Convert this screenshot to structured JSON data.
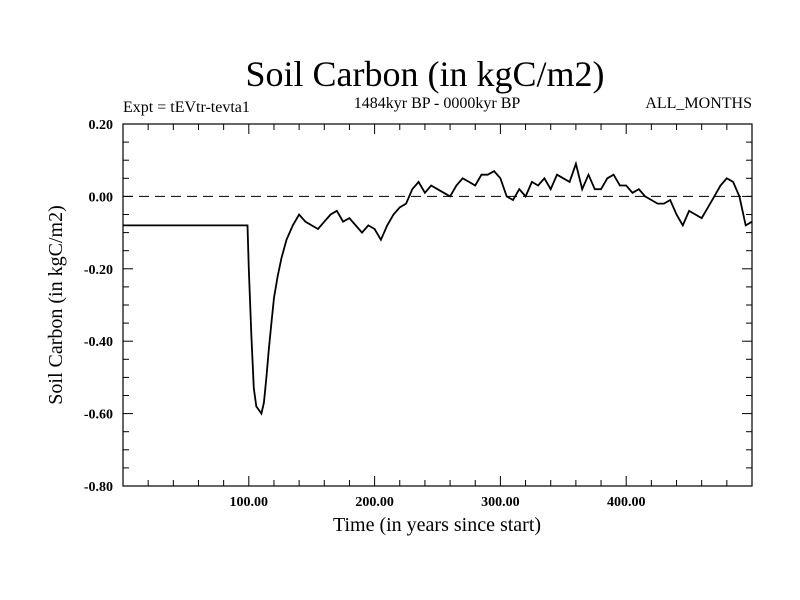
{
  "chart_data": {
    "type": "line",
    "title": "Soil Carbon (in kgC/m2)",
    "subtitle": "1484kyr BP - 0000kyr BP",
    "expt_label": "Expt = tEVtr-tevta1",
    "months_label": "ALL_MONTHS",
    "xlabel": "Time (in years since start)",
    "ylabel": "Soil Carbon (in kgC/m2)",
    "xlim": [
      0,
      500
    ],
    "ylim": [
      -0.8,
      0.2
    ],
    "x_ticks": [
      100,
      200,
      300,
      400
    ],
    "x_tick_labels": [
      "100.00",
      "200.00",
      "300.00",
      "400.00"
    ],
    "y_ticks": [
      0.2,
      0.0,
      -0.2,
      -0.4,
      -0.6,
      -0.8
    ],
    "y_tick_labels": [
      "0.20",
      "0.00",
      "-0.20",
      "-0.40",
      "-0.60",
      "-0.80"
    ],
    "reference_line": 0.0,
    "series": [
      {
        "name": "Soil Carbon",
        "color": "#000000",
        "x": [
          0,
          99,
          100,
          102,
          104,
          106,
          108,
          110,
          112,
          114,
          116,
          118,
          120,
          123,
          126,
          130,
          135,
          140,
          145,
          150,
          155,
          160,
          165,
          170,
          175,
          180,
          185,
          190,
          195,
          200,
          205,
          210,
          215,
          220,
          225,
          230,
          235,
          240,
          245,
          250,
          255,
          260,
          265,
          270,
          275,
          280,
          285,
          290,
          295,
          300,
          305,
          310,
          315,
          320,
          325,
          330,
          335,
          340,
          345,
          350,
          355,
          360,
          365,
          370,
          375,
          380,
          385,
          390,
          395,
          400,
          405,
          410,
          415,
          420,
          425,
          430,
          435,
          440,
          445,
          450,
          455,
          460,
          465,
          470,
          475,
          480,
          485,
          490,
          495,
          500
        ],
        "y": [
          -0.08,
          -0.08,
          -0.2,
          -0.38,
          -0.53,
          -0.58,
          -0.59,
          -0.6,
          -0.57,
          -0.5,
          -0.42,
          -0.35,
          -0.28,
          -0.22,
          -0.17,
          -0.12,
          -0.08,
          -0.05,
          -0.07,
          -0.08,
          -0.09,
          -0.07,
          -0.05,
          -0.04,
          -0.07,
          -0.06,
          -0.08,
          -0.1,
          -0.08,
          -0.09,
          -0.12,
          -0.08,
          -0.05,
          -0.03,
          -0.02,
          0.02,
          0.04,
          0.01,
          0.03,
          0.02,
          0.01,
          0.0,
          0.03,
          0.05,
          0.04,
          0.03,
          0.06,
          0.06,
          0.07,
          0.05,
          0.0,
          -0.01,
          0.02,
          0.0,
          0.04,
          0.03,
          0.05,
          0.02,
          0.06,
          0.05,
          0.04,
          0.09,
          0.02,
          0.06,
          0.02,
          0.02,
          0.05,
          0.06,
          0.03,
          0.03,
          0.01,
          0.02,
          0.0,
          -0.01,
          -0.02,
          -0.02,
          -0.01,
          -0.05,
          -0.08,
          -0.04,
          -0.05,
          -0.06,
          -0.03,
          0.0,
          0.03,
          0.05,
          0.04,
          0.0,
          -0.08,
          -0.07
        ]
      }
    ]
  }
}
